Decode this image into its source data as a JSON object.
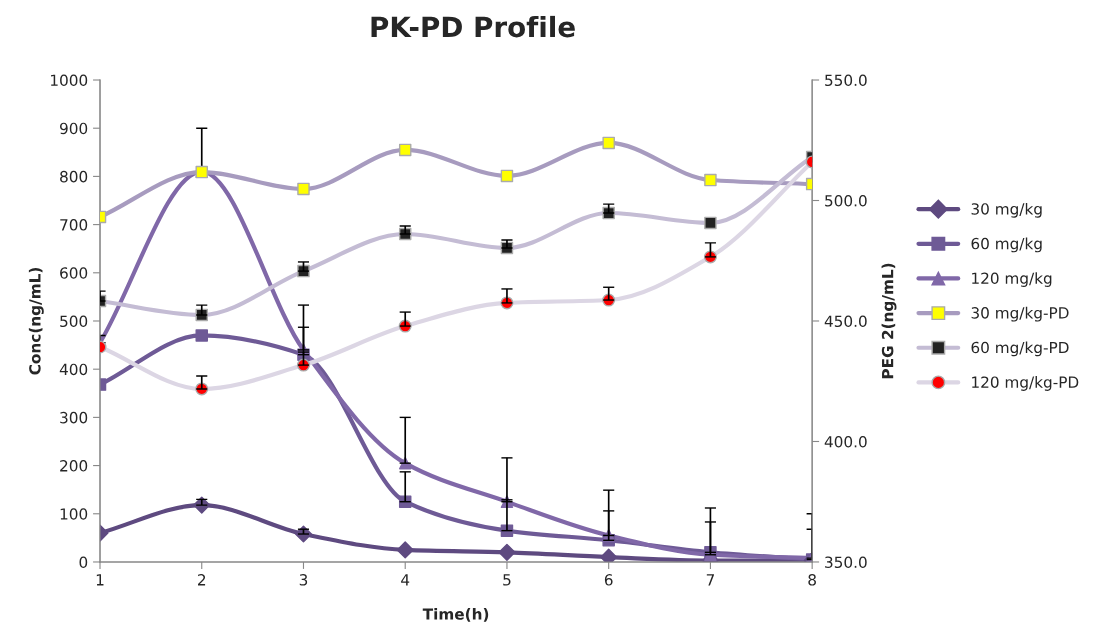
{
  "chart_data": {
    "type": "line",
    "title": "PK-PD Profile",
    "xlabel": "Time(h)",
    "ylabel": "Conc(ng/mL)",
    "y2label": "PEG 2(ng/mL)",
    "x": [
      1,
      2,
      3,
      4,
      5,
      6,
      7,
      8
    ],
    "xlim": [
      1,
      8
    ],
    "xticks": [
      1,
      2,
      3,
      4,
      5,
      6,
      7,
      8
    ],
    "ylim": [
      0,
      1000
    ],
    "yticks": [
      0,
      100,
      200,
      300,
      400,
      500,
      600,
      700,
      800,
      900,
      1000
    ],
    "y2lim": [
      350,
      550
    ],
    "y2ticks": [
      {
        "value": 350,
        "label": "350.0"
      },
      {
        "value": 400,
        "label": "400.0"
      },
      {
        "value": 450,
        "label": "450.0"
      },
      {
        "value": 500,
        "label": "500.0"
      },
      {
        "value": 550,
        "label": "550.0"
      }
    ],
    "grid": false,
    "legend": "right",
    "series": [
      {
        "name": "30 mg/kg",
        "color": "#5e4a80",
        "marker": "diamond",
        "values": [
          60,
          118,
          58,
          25,
          20,
          10,
          3,
          3
        ],
        "errors": [
          null,
          [
            118,
            130
          ],
          [
            58,
            68
          ],
          null,
          null,
          null,
          null,
          null
        ]
      },
      {
        "name": "60 mg/kg",
        "color": "#6e5a96",
        "marker": "square",
        "values": [
          368,
          470,
          430,
          125,
          65,
          45,
          20,
          5
        ],
        "errors": [
          null,
          null,
          [
            430,
            487
          ],
          [
            125,
            187
          ],
          [
            65,
            129
          ],
          [
            45,
            106
          ],
          [
            20,
            83
          ],
          [
            5,
            68
          ]
        ]
      },
      {
        "name": "120 mg/kg",
        "color": "#8068a8",
        "marker": "triangle",
        "values": [
          455,
          810,
          440,
          205,
          125,
          55,
          15,
          8
        ],
        "errors": [
          [
            455,
            470
          ],
          [
            810,
            900
          ],
          [
            440,
            533
          ],
          [
            205,
            300
          ],
          [
            125,
            216
          ],
          [
            55,
            149
          ],
          [
            15,
            112
          ],
          [
            8,
            100
          ]
        ]
      },
      {
        "name": "30 mg/kg-PD",
        "color": "#a79bbf",
        "colors": [
          "#ffff00",
          "#ffff00",
          "#ffff00",
          "#ffff00",
          "#ffff00",
          "#ffff00",
          "#ffff00",
          "#ffff00"
        ],
        "marker": "square",
        "axis": "y2",
        "values": [
          493.2,
          511.8,
          504.8,
          521.0,
          510.2,
          523.9,
          508.5,
          506.8
        ]
      },
      {
        "name": "60 mg/kg-PD",
        "color": "#c4bcd4",
        "colors": [
          "#222222",
          "#222222",
          "#222222",
          "#222222",
          "#222222",
          "#222222",
          "#222222",
          "#222222"
        ],
        "marker": "square",
        "axis": "y2",
        "values": [
          458.3,
          452.5,
          470.7,
          486.1,
          480.3,
          494.8,
          490.7,
          518.0
        ],
        "errors": [
          [
            458.3,
            462.4
          ],
          [
            452.5,
            456.6
          ],
          [
            470.7,
            474.5
          ],
          [
            486.1,
            489.4
          ],
          [
            480.3,
            483.6
          ],
          [
            494.8,
            498.5
          ],
          null,
          null
        ]
      },
      {
        "name": "120 mg/kg-PD",
        "color": "#dcd6e4",
        "colors": [
          "#ff0000",
          "#ff0000",
          "#ff0000",
          "#ff0000",
          "#ff0000",
          "#ff0000",
          "#ff0000",
          "#ff0000"
        ],
        "marker": "circle",
        "axis": "y2",
        "values": [
          439.2,
          421.8,
          431.7,
          447.9,
          457.5,
          458.7,
          476.6,
          516.0
        ],
        "errors": [
          null,
          [
            421.8,
            427.2
          ],
          [
            431.7,
            437.1
          ],
          [
            447.9,
            453.7
          ],
          [
            457.5,
            463.3
          ],
          [
            458.7,
            464.0
          ],
          [
            476.6,
            482.4
          ],
          null
        ]
      }
    ]
  }
}
